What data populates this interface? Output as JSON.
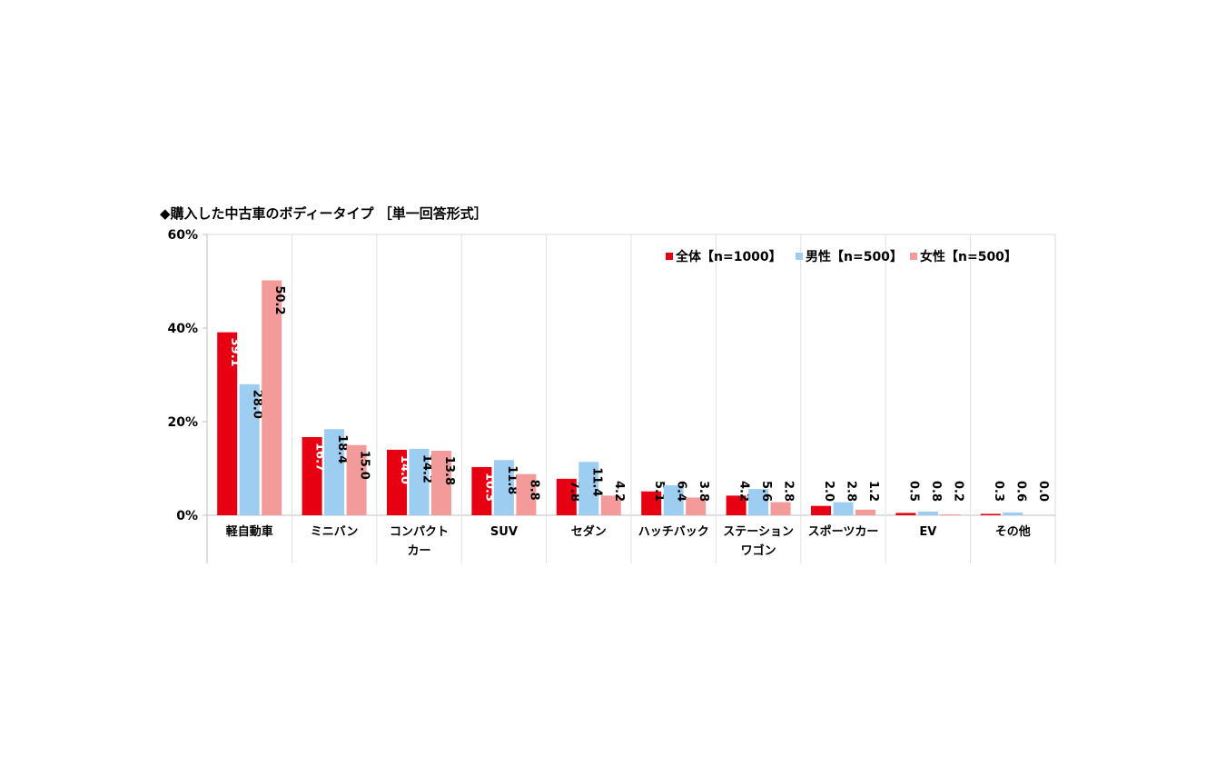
{
  "chart_data": {
    "type": "bar",
    "title": "◆購入した中古車のボディータイプ ［単一回答形式］",
    "y_tick_labels": [
      "0%",
      "20%",
      "40%",
      "60%"
    ],
    "y_ticks": [
      0,
      20,
      40,
      60
    ],
    "ylim": [
      0,
      60
    ],
    "grid": "vertical category separators",
    "legend_position": "top-right",
    "categories": [
      [
        "軽自動車"
      ],
      [
        "ミニバン"
      ],
      [
        "コンパクト",
        "カー"
      ],
      [
        "SUV"
      ],
      [
        "セダン"
      ],
      [
        "ハッチバック"
      ],
      [
        "ステーション",
        "ワゴン"
      ],
      [
        "スポーツカー"
      ],
      [
        "EV"
      ],
      [
        "その他"
      ]
    ],
    "series": [
      {
        "name": "全体【n=1000】",
        "color": "#e60012",
        "label_color": "#ffffff",
        "values": [
          39.1,
          16.7,
          14.0,
          10.3,
          7.8,
          5.1,
          4.2,
          2.0,
          0.5,
          0.3
        ]
      },
      {
        "name": "男性【n=500】",
        "color": "#9dcdf1",
        "label_color": "#000000",
        "values": [
          28.0,
          18.4,
          14.2,
          11.8,
          11.4,
          6.4,
          5.6,
          2.8,
          0.8,
          0.6
        ]
      },
      {
        "name": "女性【n=500】",
        "color": "#f39a9a",
        "label_color": "#000000",
        "values": [
          50.2,
          15.0,
          13.8,
          8.8,
          4.2,
          3.8,
          2.8,
          1.2,
          0.2,
          0.0
        ]
      }
    ]
  }
}
